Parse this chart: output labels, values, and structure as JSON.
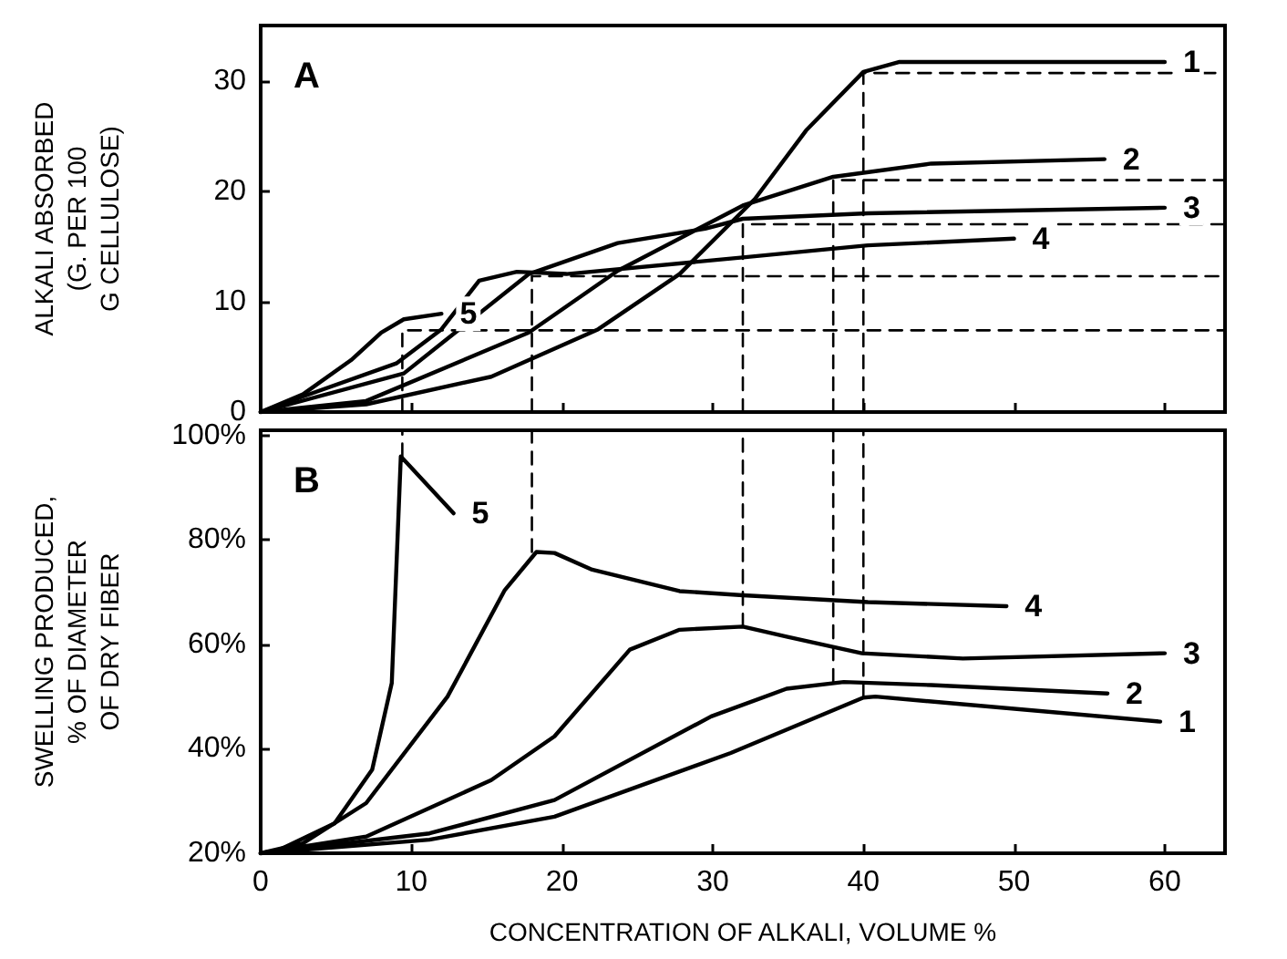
{
  "chart_data": [
    {
      "type": "line",
      "ylabel": "ALKALI ABSORBED\n(G. PER 100\nG CELLULOSE)",
      "xlim": [
        0,
        64
      ],
      "xticks": [
        0,
        10,
        20,
        30,
        40,
        50,
        60
      ],
      "ylim": [
        0,
        35
      ],
      "yticks": [
        0,
        10,
        20,
        30
      ],
      "tick_labels": "y",
      "grid": false,
      "legend": false,
      "marker": "none",
      "line_style": "solid",
      "series": [
        {
          "name": "1",
          "color": "#000000",
          "x": [
            0,
            7,
            15.3,
            22.4,
            27.8,
            32.8,
            36.2,
            40,
            42.4,
            60
          ],
          "values": [
            0,
            0.7,
            3.2,
            7.5,
            12.5,
            19.3,
            25.5,
            30.8,
            31.7,
            31.7
          ]
        },
        {
          "name": "2",
          "color": "#000000",
          "x": [
            0,
            7,
            17.8,
            23.7,
            32,
            38,
            44.5,
            56
          ],
          "values": [
            0,
            1,
            7.2,
            12.8,
            18.7,
            21.3,
            22.5,
            22.9
          ]
        },
        {
          "name": "3",
          "color": "#000000",
          "x": [
            0,
            9.5,
            17.8,
            23.7,
            29.5,
            32,
            40.3,
            60
          ],
          "values": [
            0,
            3.5,
            12.5,
            15.3,
            16.6,
            17.5,
            18,
            18.5
          ]
        },
        {
          "name": "4",
          "color": "#000000",
          "x": [
            0,
            2.8,
            9,
            12,
            14.5,
            17,
            20.3,
            32,
            40.3,
            50
          ],
          "values": [
            0,
            1.4,
            4.4,
            7.5,
            11.9,
            12.7,
            12.5,
            14,
            15.1,
            15.7
          ]
        },
        {
          "name": "5",
          "color": "#000000",
          "x": [
            0,
            2.8,
            6,
            8,
            9.5,
            12
          ],
          "values": [
            0,
            1.6,
            4.7,
            7.2,
            8.4,
            8.9
          ]
        },
        {
          "color": "#000000",
          "line_style": "dashed",
          "x": [
            9.4,
            9.4,
            64
          ],
          "values": [
            0,
            7.4,
            7.4
          ]
        },
        {
          "color": "#000000",
          "line_style": "dashed",
          "x": [
            18,
            18,
            64
          ],
          "values": [
            0,
            12.3,
            12.3
          ]
        },
        {
          "color": "#000000",
          "line_style": "dashed",
          "x": [
            32,
            32,
            64
          ],
          "values": [
            0,
            17,
            17
          ]
        },
        {
          "color": "#000000",
          "line_style": "dashed",
          "x": [
            38,
            38,
            64
          ],
          "values": [
            0,
            21,
            21
          ]
        },
        {
          "color": "#000000",
          "line_style": "dashed",
          "x": [
            40,
            40,
            64
          ],
          "values": [
            0,
            30.7,
            30.7
          ]
        }
      ],
      "annotations": [
        "A"
      ]
    },
    {
      "type": "line",
      "xlabel": "CONCENTRATION OF ALKALI, VOLUME %",
      "ylabel": "SWELLING PRODUCED,\n% OF DIAMETER\nOF DRY FIBER",
      "xlim": [
        0,
        64
      ],
      "xticks": [
        0,
        10,
        20,
        30,
        40,
        50,
        60
      ],
      "ylim": [
        20,
        101
      ],
      "yticks": [
        {
          "value": 20,
          "label": "20%"
        },
        {
          "value": 40,
          "label": "40%"
        },
        {
          "value": 60,
          "label": "60%"
        },
        {
          "value": 80,
          "label": "80%"
        },
        {
          "value": 100,
          "label": "100%"
        }
      ],
      "grid": false,
      "legend": false,
      "marker": "none",
      "line_style": "solid",
      "series": [
        {
          "name": "1",
          "color": "#000000",
          "x": [
            0,
            11.2,
            19.5,
            31.2,
            40,
            40.8,
            59.7
          ],
          "values": [
            20,
            22.6,
            27,
            39.2,
            49.8,
            50,
            45.2
          ]
        },
        {
          "name": "2",
          "color": "#000000",
          "x": [
            0,
            11.2,
            19.5,
            29.9,
            34.9,
            38.7,
            44.5,
            56.2
          ],
          "values": [
            20,
            23.8,
            30.2,
            46.2,
            51.5,
            52.8,
            52.2,
            50.6
          ]
        },
        {
          "name": "3",
          "color": "#000000",
          "x": [
            0,
            7,
            15.3,
            19.5,
            24.5,
            27.8,
            32,
            34.9,
            39.9,
            46.6,
            60
          ],
          "values": [
            20,
            23.2,
            34,
            42.4,
            59,
            62.8,
            63.4,
            61.5,
            58.3,
            57.3,
            58.3
          ]
        },
        {
          "name": "4",
          "color": "#000000",
          "x": [
            0,
            2.8,
            7,
            12.4,
            16.2,
            18.3,
            19.5,
            22,
            27.8,
            32,
            40.3,
            49.5
          ],
          "values": [
            20,
            21.9,
            29.6,
            50,
            70.4,
            77.7,
            77.5,
            74.3,
            70.2,
            69.4,
            68.1,
            67.3
          ]
        },
        {
          "name": "5",
          "color": "#000000",
          "x": [
            0,
            1.2,
            4.9,
            7.4,
            8.7,
            9.3,
            12.8
          ],
          "values": [
            20,
            20.6,
            25.7,
            36,
            52.6,
            96,
            85.1
          ]
        },
        {
          "color": "#000000",
          "line_style": "dashed",
          "x": [
            9.4,
            9.4
          ],
          "values": [
            96,
            101
          ]
        },
        {
          "color": "#000000",
          "line_style": "dashed",
          "x": [
            18,
            18
          ],
          "values": [
            77.7,
            101
          ]
        },
        {
          "color": "#000000",
          "line_style": "dashed",
          "x": [
            32,
            32
          ],
          "values": [
            63.4,
            101
          ]
        },
        {
          "color": "#000000",
          "line_style": "dashed",
          "x": [
            38,
            38
          ],
          "values": [
            52.8,
            101
          ]
        },
        {
          "color": "#000000",
          "line_style": "dashed",
          "x": [
            40,
            40
          ],
          "values": [
            49.8,
            101
          ]
        }
      ],
      "annotations": [
        "B"
      ]
    }
  ]
}
